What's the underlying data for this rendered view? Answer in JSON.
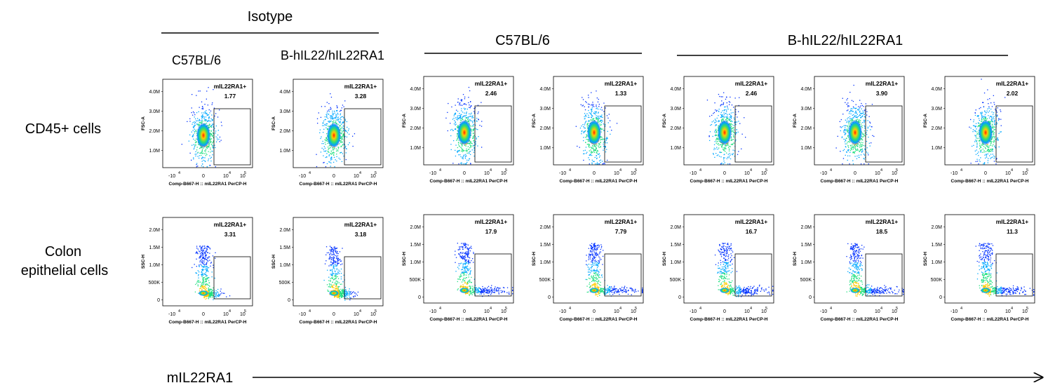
{
  "header": {
    "isotype": "Isotype",
    "isotype_c57": "C57BL/6",
    "isotype_hIL22": "B-hIL22/hIL22RA1",
    "group_c57": "C57BL/6",
    "group_hIL22": "B-hIL22/hIL22RA1"
  },
  "rows": [
    "CD45+ cells",
    "Colon",
    "epithelial cells"
  ],
  "axis_title": "mIL22RA1",
  "chart_data": {
    "type": "scatter",
    "subtype": "flow-cytometry-density-plots",
    "gate_label": "mIL22RA1+",
    "xlabel": "Comp-B667-H :: mIL22RA1 PerCP-H",
    "x_ticks": [
      "-10",
      "4",
      "0",
      "10",
      "4",
      "10",
      "5"
    ],
    "panels": [
      {
        "row": "CD45+ cells",
        "ylabel": "FSC-A",
        "y_ticks": [
          "4.0M",
          "3.0M",
          "2.0M",
          "1.0M"
        ],
        "gate_values": [
          "1.77",
          "3.28",
          "2.46",
          "1.33",
          "2.46",
          "3.90",
          "2.02"
        ]
      },
      {
        "row": "Colon epithelial cells",
        "ylabel": "SSC-H",
        "y_ticks": [
          "2.0M",
          "1.5M",
          "1.0M",
          "500K",
          "0"
        ],
        "gate_values": [
          "3.31",
          "3.18",
          "17.9",
          "7.79",
          "16.7",
          "18.5",
          "11.3"
        ]
      }
    ],
    "colors": {
      "low": "#0000ff",
      "mid": "#00e0c0",
      "high": "#ffe000",
      "peak": "#ff0000"
    }
  }
}
